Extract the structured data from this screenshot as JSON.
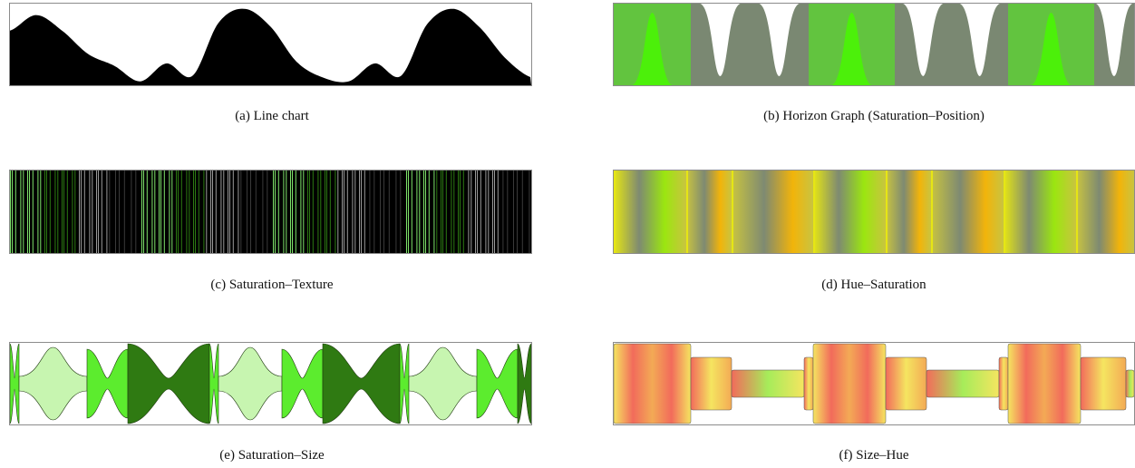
{
  "figure": {
    "captions": {
      "a": "(a) Line chart",
      "b": "(b) Horizon Graph (Saturation–Position)",
      "c": "(c) Saturation–Texture",
      "d": "(d) Hue–Saturation",
      "e": "(e) Saturation–Size",
      "f": "(f) Size–Hue"
    }
  },
  "chart_data": [
    {
      "id": "a",
      "type": "area",
      "title": "(a) Line chart",
      "x": [
        0,
        5,
        10,
        15,
        20,
        25,
        30,
        35,
        40,
        45,
        50,
        55,
        60,
        65,
        70,
        75,
        80,
        85,
        90,
        95,
        100
      ],
      "values": [
        0.7,
        0.9,
        0.7,
        0.4,
        0.25,
        0.05,
        0.28,
        0.12,
        0.8,
        0.98,
        0.75,
        0.3,
        0.1,
        0.05,
        0.28,
        0.12,
        0.78,
        0.98,
        0.75,
        0.35,
        0.1
      ],
      "ylim": [
        0,
        1
      ],
      "colors": {
        "fill": "#000000"
      }
    },
    {
      "id": "b",
      "type": "horizon",
      "title": "(b) Horizon Graph (Saturation–Position)",
      "colors": [
        "#62c43f",
        "#4cf00a",
        "#7a8872"
      ]
    },
    {
      "id": "c",
      "type": "stripes",
      "title": "(c) Saturation–Texture",
      "colors": [
        "#7ee26a",
        "#2c7a12",
        "#9a9a9a",
        "#000000"
      ]
    },
    {
      "id": "d",
      "type": "stripes",
      "title": "(d) Hue–Saturation",
      "colors": [
        "#e6e614",
        "#7e8a72",
        "#9be610",
        "#f2b40a",
        "#c9c440"
      ]
    },
    {
      "id": "e",
      "type": "band",
      "title": "(e) Saturation–Size",
      "colors": [
        "#c7f5b0",
        "#5cec2e",
        "#2f7a12"
      ]
    },
    {
      "id": "f",
      "type": "band",
      "title": "(f) Size–Hue",
      "colors": [
        "#f26b5b",
        "#f5e560",
        "#a6ec5a",
        "#f3aa55"
      ]
    }
  ]
}
